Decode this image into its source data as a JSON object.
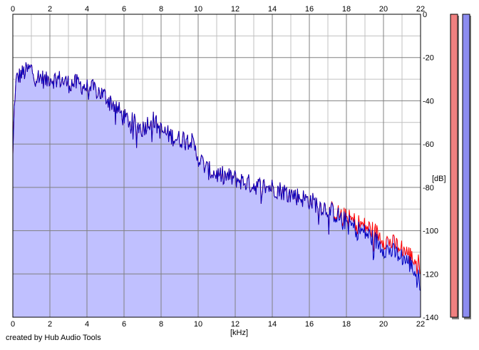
{
  "footer": {
    "credit": "created by Hub Audio Tools"
  },
  "chart_data": {
    "type": "area",
    "xlabel": "[kHz]",
    "ylabel": "[dB]",
    "xlim": [
      0,
      22
    ],
    "ylim": [
      -140,
      0
    ],
    "x_ticks": [
      0,
      2,
      4,
      6,
      8,
      10,
      12,
      14,
      16,
      18,
      20,
      22
    ],
    "y_ticks": [
      0,
      -20,
      -40,
      -60,
      -80,
      -100,
      -120,
      -140
    ],
    "grid": true,
    "legend": "none",
    "colors": {
      "fill": "#c0c0ff",
      "channel_1_line": "#ff0000",
      "channel_2_line": "#0000c0",
      "meter_1": "#f08080",
      "meter_2": "#8c8cf0",
      "major_grid": "#808080",
      "minor_grid": "#c0c0c0"
    },
    "series": [
      {
        "x": [
          0,
          0.1,
          0.2,
          0.4,
          0.6,
          0.8,
          1.0,
          1.2,
          1.5,
          1.8,
          2.0,
          2.2,
          2.5,
          3.0,
          3.5,
          4.0,
          4.5,
          5.0,
          5.5,
          6.0,
          6.5,
          7.0,
          7.5,
          8.0,
          8.5,
          9.0,
          9.5,
          10.0,
          10.5,
          11.0,
          12.0,
          13.0,
          14.0,
          15.0,
          16.0,
          17.0,
          17.5,
          18.0,
          18.5,
          19.0,
          19.5,
          20.0,
          20.5,
          21.0,
          21.5,
          22.0
        ],
        "values": [
          -66,
          -38,
          -30,
          -28,
          -27,
          -26,
          -25,
          -29,
          -29,
          -31,
          -29,
          -30,
          -30,
          -32,
          -32,
          -34,
          -35,
          -38,
          -42,
          -48,
          -50,
          -53,
          -48,
          -54,
          -56,
          -58,
          -56,
          -66,
          -72,
          -74,
          -76,
          -79,
          -80,
          -83,
          -86,
          -90,
          -92,
          -94,
          -96,
          -98,
          -100,
          -104,
          -106,
          -108,
          -112,
          -116
        ]
      },
      {
        "x": [
          0,
          0.1,
          0.2,
          0.4,
          0.6,
          0.8,
          1.0,
          1.2,
          1.5,
          1.8,
          2.0,
          2.2,
          2.5,
          3.0,
          3.5,
          4.0,
          4.5,
          5.0,
          5.5,
          6.0,
          6.5,
          7.0,
          7.5,
          8.0,
          8.5,
          9.0,
          9.5,
          10.0,
          10.5,
          11.0,
          12.0,
          13.0,
          14.0,
          15.0,
          16.0,
          17.0,
          17.5,
          18.0,
          18.5,
          19.0,
          19.5,
          20.0,
          20.5,
          21.0,
          21.5,
          22.0
        ],
        "values": [
          -66,
          -38,
          -30,
          -28,
          -27,
          -26,
          -25,
          -29,
          -29,
          -31,
          -29,
          -30,
          -30,
          -32,
          -32,
          -34,
          -35,
          -38,
          -42,
          -48,
          -50,
          -53,
          -48,
          -54,
          -56,
          -58,
          -56,
          -66,
          -72,
          -74,
          -76,
          -79,
          -80,
          -83,
          -86,
          -90,
          -93,
          -96,
          -99,
          -101,
          -104,
          -108,
          -110,
          -112,
          -116,
          -124
        ]
      }
    ]
  }
}
